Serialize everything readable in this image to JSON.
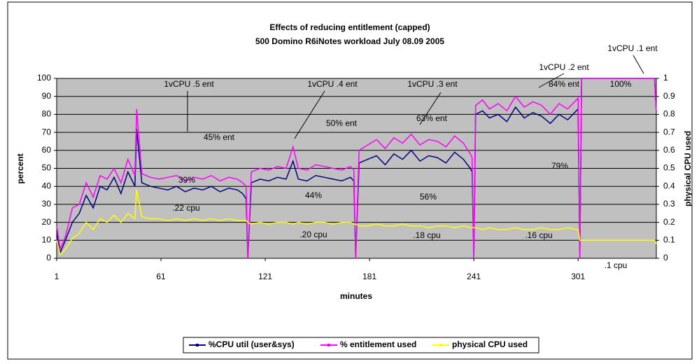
{
  "chart_data": {
    "type": "line",
    "title": "Effects of reducing entitlement (capped)",
    "subtitle": "500 Domino R6iNotes workload July 08.09 2005",
    "xlabel": "minutes",
    "ylabel": "percent",
    "y2label": "physical CPU used",
    "x": [
      1,
      3,
      6,
      10,
      14,
      18,
      22,
      26,
      30,
      34,
      38,
      42,
      46,
      47,
      50,
      55,
      60,
      65,
      70,
      75,
      80,
      85,
      90,
      95,
      100,
      105,
      108,
      110,
      111,
      113,
      118,
      123,
      128,
      133,
      137,
      140,
      145,
      150,
      155,
      160,
      165,
      170,
      172,
      173,
      175,
      180,
      185,
      190,
      195,
      200,
      205,
      210,
      215,
      220,
      225,
      230,
      235,
      239,
      240,
      241,
      242,
      246,
      250,
      255,
      260,
      265,
      270,
      275,
      280,
      285,
      290,
      295,
      300,
      301,
      302,
      303,
      310,
      320,
      330,
      340,
      345,
      346
    ],
    "series": [
      {
        "name": "%CPU util (user&sys)",
        "color": "#000080",
        "values": [
          15,
          3,
          10,
          20,
          25,
          35,
          28,
          40,
          38,
          45,
          36,
          48,
          40,
          72,
          42,
          40,
          39,
          38,
          40,
          37,
          39,
          38,
          40,
          37,
          39,
          38,
          36,
          33,
          0,
          42,
          44,
          43,
          45,
          44,
          54,
          44,
          43,
          46,
          45,
          44,
          43,
          45,
          43,
          0,
          53,
          55,
          57,
          52,
          58,
          55,
          60,
          54,
          57,
          56,
          53,
          59,
          55,
          50,
          48,
          0,
          80,
          82,
          78,
          80,
          76,
          84,
          78,
          81,
          79,
          75,
          80,
          77,
          82,
          83,
          0,
          100,
          100,
          100,
          100,
          100,
          100,
          81
        ]
      },
      {
        "name": "% entitlement used",
        "color": "#ff00ff",
        "values": [
          18,
          5,
          12,
          28,
          30,
          42,
          34,
          46,
          44,
          50,
          42,
          55,
          46,
          83,
          47,
          45,
          44,
          45,
          46,
          43,
          45,
          44,
          46,
          43,
          45,
          44,
          42,
          40,
          0,
          48,
          50,
          49,
          51,
          50,
          62,
          50,
          49,
          52,
          51,
          50,
          49,
          51,
          49,
          0,
          60,
          63,
          66,
          61,
          67,
          64,
          69,
          63,
          66,
          65,
          62,
          68,
          64,
          58,
          56,
          0,
          85,
          88,
          83,
          86,
          82,
          90,
          84,
          87,
          85,
          80,
          86,
          83,
          88,
          89,
          0,
          100,
          100,
          100,
          100,
          100,
          100,
          81
        ]
      },
      {
        "name": "physical CPU used",
        "color": "#ffff00",
        "axis": "y2",
        "values": [
          0.1,
          0.02,
          0.05,
          0.11,
          0.14,
          0.2,
          0.16,
          0.22,
          0.2,
          0.24,
          0.2,
          0.25,
          0.22,
          0.38,
          0.23,
          0.22,
          0.22,
          0.21,
          0.22,
          0.21,
          0.22,
          0.21,
          0.22,
          0.21,
          0.22,
          0.21,
          0.21,
          0.21,
          0.2,
          0.19,
          0.2,
          0.19,
          0.2,
          0.2,
          0.19,
          0.2,
          0.19,
          0.2,
          0.2,
          0.19,
          0.2,
          0.2,
          0.19,
          0.19,
          0.18,
          0.18,
          0.19,
          0.18,
          0.18,
          0.19,
          0.18,
          0.18,
          0.17,
          0.18,
          0.18,
          0.17,
          0.18,
          0.17,
          0.17,
          0.17,
          0.17,
          0.16,
          0.17,
          0.16,
          0.16,
          0.17,
          0.16,
          0.16,
          0.17,
          0.16,
          0.16,
          0.17,
          0.16,
          0.16,
          0.1,
          0.1,
          0.1,
          0.1,
          0.1,
          0.1,
          0.1,
          0.08
        ]
      }
    ],
    "xlim": [
      1,
      346
    ],
    "xticks": [
      1,
      61,
      121,
      181,
      241,
      301
    ],
    "ylim": [
      0,
      100
    ],
    "yticks": [
      0,
      10,
      20,
      30,
      40,
      50,
      60,
      70,
      80,
      90,
      100
    ],
    "y2lim": [
      0,
      1
    ],
    "y2ticks": [
      0,
      0.1,
      0.2,
      0.3,
      0.4,
      0.5,
      0.6,
      0.7,
      0.8,
      0.9,
      1
    ],
    "grid": true,
    "legend": "bottom",
    "annotations": [
      "1vCPU .5 ent",
      "45% ent",
      "39%",
      ".22 cpu",
      "1vCPU .4 ent",
      "44%",
      ".20 cpu",
      "50% ent",
      "1vCPU .3 ent",
      "63% ent",
      "56%",
      ".18 cpu",
      "1vCPU .2 ent",
      "84% ent",
      "79%",
      ".16 cpu",
      "1vCPU .1 ent",
      "100%",
      ".1 cpu"
    ]
  }
}
